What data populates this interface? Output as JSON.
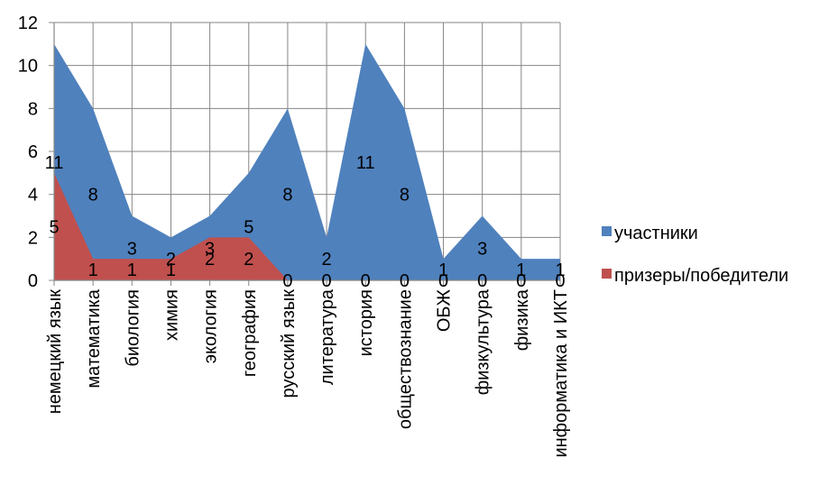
{
  "chart_data": {
    "type": "area",
    "categories": [
      "немецкий язык",
      "математика",
      "биология",
      "химия",
      "экология",
      "география",
      "русский язык",
      "литература",
      "история",
      "обществознание",
      "ОБЖ",
      "физкультура",
      "физика",
      "информатика и ИКТ"
    ],
    "series": [
      {
        "name": "участники",
        "values": [
          11,
          8,
          3,
          2,
          3,
          5,
          8,
          2,
          11,
          8,
          1,
          3,
          1,
          1
        ],
        "color": "#4F81BD"
      },
      {
        "name": "призеры/победители",
        "values": [
          5,
          1,
          1,
          1,
          2,
          2,
          0,
          0,
          0,
          0,
          0,
          0,
          0,
          0
        ],
        "color": "#C0504D"
      }
    ],
    "yticks": [
      "0",
      "2",
      "4",
      "6",
      "8",
      "10",
      "12"
    ],
    "ylim": [
      0,
      12
    ],
    "grid": true,
    "legend": "right",
    "title": "",
    "xlabel": "",
    "ylabel": ""
  }
}
